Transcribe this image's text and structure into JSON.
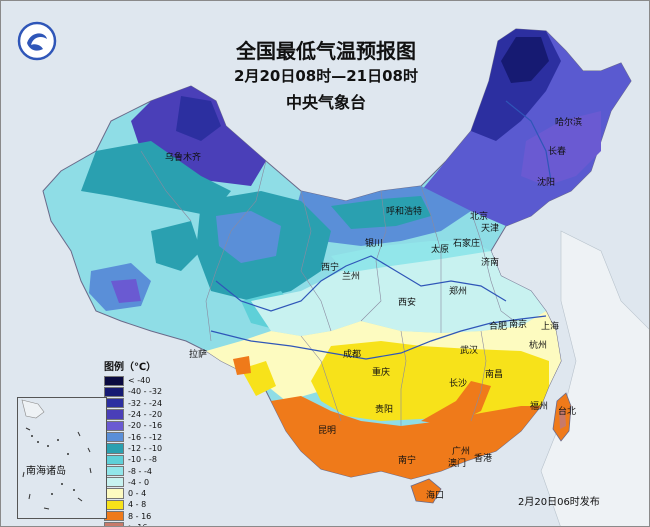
{
  "header": {
    "title": "全国最低气温预报图",
    "period": "2月20日08时—21日08时",
    "issuer": "中央气象台"
  },
  "legend": {
    "title": "图例（℃）",
    "items": [
      {
        "label": "< -40",
        "color": "#0a0a40"
      },
      {
        "label": "-40 - -32",
        "color": "#161a72"
      },
      {
        "label": "-32 - -24",
        "color": "#2c2fa0"
      },
      {
        "label": "-24 - -20",
        "color": "#4a3fb8"
      },
      {
        "label": "-20 - -16",
        "color": "#6a5ad2"
      },
      {
        "label": "-16 - -12",
        "color": "#5a8fd8"
      },
      {
        "label": "-12 - -10",
        "color": "#2aa0b0"
      },
      {
        "label": "-10 - -8",
        "color": "#5ed0d8"
      },
      {
        "label": "-8 - -4",
        "color": "#92e6ea"
      },
      {
        "label": "-4 - 0",
        "color": "#c8f2f0"
      },
      {
        "label": "0 - 4",
        "color": "#fdfbc0"
      },
      {
        "label": "4 - 8",
        "color": "#f7e21a"
      },
      {
        "label": "8 - 16",
        "color": "#ef7a1a"
      },
      {
        "label": "> 16",
        "color": "#c87a6a"
      }
    ]
  },
  "cities": [
    "乌鲁木齐",
    "哈尔滨",
    "长春",
    "沈阳",
    "呼和浩特",
    "北京",
    "天津",
    "银川",
    "太原",
    "石家庄",
    "西宁",
    "兰州",
    "济南",
    "郑州",
    "西安",
    "合肥",
    "南京",
    "上海",
    "杭州",
    "拉萨",
    "成都",
    "武汉",
    "重庆",
    "长沙",
    "南昌",
    "贵阳",
    "福州",
    "台北",
    "昆明",
    "南宁",
    "广州",
    "香港",
    "澳门",
    "海口"
  ],
  "inset": {
    "label": "南海诸岛"
  },
  "footer": {
    "issued": "2月20日06时发布"
  }
}
